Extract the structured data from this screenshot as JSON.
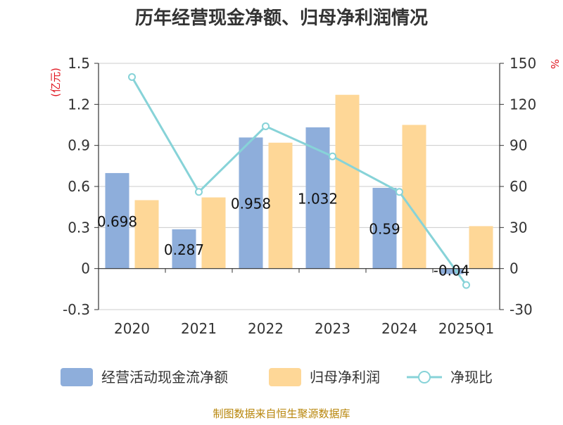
{
  "title": "历年经营现金净额、归母净利润情况",
  "source": "制图数据来自恒生聚源数据库",
  "chart_data": {
    "type": "bar",
    "title": "历年经营现金净额、归母净利润情况",
    "categories": [
      "2020",
      "2021",
      "2022",
      "2023",
      "2024",
      "2025Q1"
    ],
    "y_left": {
      "unit": "(亿元)",
      "ylim": [
        -0.3,
        1.5
      ],
      "ticks": [
        "1.5",
        "1.2",
        "0.9",
        "0.6",
        "0.3",
        "0",
        "-0.3"
      ]
    },
    "y_right": {
      "unit": "%",
      "ylim": [
        -30,
        150
      ],
      "ticks": [
        "150",
        "120",
        "90",
        "60",
        "30",
        "0",
        "-30"
      ]
    },
    "series": [
      {
        "name": "经营活动现金流净额",
        "type": "bar",
        "axis": "left",
        "color": "#8eaedb",
        "values": [
          0.698,
          0.287,
          0.958,
          1.032,
          0.59,
          -0.04
        ],
        "labels": [
          "0.698",
          "0.287",
          "0.958",
          "1.032",
          "0.59",
          "-0.04"
        ]
      },
      {
        "name": "归母净利润",
        "type": "bar",
        "axis": "left",
        "color": "#fed797",
        "values": [
          0.5,
          0.52,
          0.92,
          1.27,
          1.05,
          0.31
        ]
      },
      {
        "name": "净现比",
        "type": "line",
        "axis": "right",
        "color": "#87d3d8",
        "values": [
          140,
          56,
          104,
          82,
          56,
          -12
        ]
      }
    ],
    "grid": true,
    "legend": "bottom"
  }
}
